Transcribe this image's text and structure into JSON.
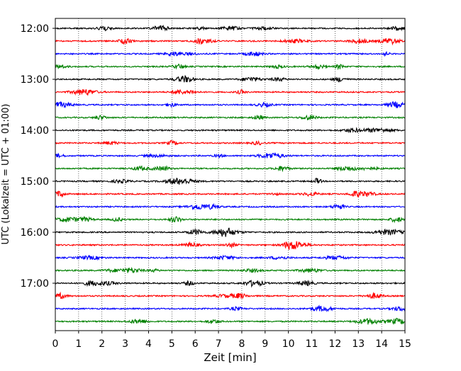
{
  "chart_data": {
    "type": "line",
    "title": "",
    "xlabel": "Zeit  [min]",
    "ylabel": "UTC (Lokalzeit = UTC + 01:00)",
    "x_ticks": [
      "0",
      "1",
      "2",
      "3",
      "4",
      "5",
      "6",
      "7",
      "8",
      "9",
      "10",
      "11",
      "12",
      "13",
      "14",
      "15"
    ],
    "xlim": [
      0,
      15
    ],
    "y_ticks": [
      "12:00",
      "13:00",
      "14:00",
      "15:00",
      "16:00",
      "17:00"
    ],
    "trace_start_times": [
      "12:00",
      "12:15",
      "12:30",
      "12:45",
      "13:00",
      "13:15",
      "13:30",
      "13:45",
      "14:00",
      "14:15",
      "14:30",
      "14:45",
      "15:00",
      "15:15",
      "15:30",
      "15:45",
      "16:00",
      "16:15",
      "16:30",
      "16:45",
      "17:00",
      "17:15",
      "17:30",
      "17:45"
    ],
    "trace_colors": [
      "#000000",
      "#ff0000",
      "#0000ff",
      "#008000"
    ],
    "trace_interval_min": 15,
    "vertical_grid": true,
    "grid_style": "dotted"
  }
}
